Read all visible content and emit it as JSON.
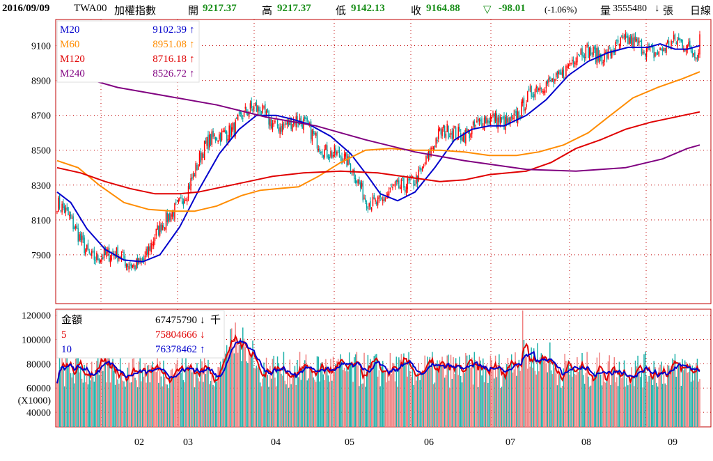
{
  "header": {
    "date": "2016/09/09",
    "ticker": "TWA00",
    "name": "加權指數",
    "open_label": "開",
    "open": "9217.37",
    "high_label": "高",
    "high": "9217.37",
    "low_label": "低",
    "low": "9142.13",
    "close_label": "收",
    "close": "9164.88",
    "change_symbol": "▽",
    "change": "-98.01",
    "change_pct": "(-1.06%)",
    "volume_label": "量",
    "volume": "3555480",
    "volume_arrow": "↓",
    "volume_unit": "張",
    "period": "日線"
  },
  "colors": {
    "up": "#ff0000",
    "down": "#00a0a0",
    "ma20": "#0000cc",
    "ma60": "#ff8c00",
    "ma120": "#e00000",
    "ma240": "#800080",
    "frame": "#c00000",
    "grid": "#c00000",
    "vol_up": "#f08080",
    "vol_down": "#20b2aa"
  },
  "price_legend": [
    {
      "name": "M20",
      "value": "9102.39",
      "arrow": "↑",
      "color": "#0000cc"
    },
    {
      "name": "M60",
      "value": "8951.08",
      "arrow": "↑",
      "color": "#ff8c00"
    },
    {
      "name": "M120",
      "value": "8716.18",
      "arrow": "↑",
      "color": "#e00000"
    },
    {
      "name": "M240",
      "value": "8526.72",
      "arrow": "↑",
      "color": "#800080"
    }
  ],
  "volume_legend": [
    {
      "name": "金額",
      "value": "67475790",
      "arrow": "↓",
      "unit": "千",
      "color": "#000000"
    },
    {
      "name": "5",
      "value": "75804666",
      "arrow": "↓",
      "unit": "",
      "color": "#e00000"
    },
    {
      "name": "10",
      "value": "76378462",
      "arrow": "↑",
      "unit": "",
      "color": "#0000cc"
    }
  ],
  "volume_unit_label": "(X1000)",
  "chart_data": [
    {
      "type": "candlestick",
      "title": "",
      "y_ticks": [
        7900,
        8100,
        8300,
        8500,
        8700,
        8900,
        9100
      ],
      "ylim": [
        7620,
        9250
      ],
      "x_ticks": [
        "02",
        "03",
        "04",
        "05",
        "06",
        "07",
        "08",
        "09"
      ],
      "grid": true,
      "legend": "top-left",
      "series": [
        {
          "name": "M20",
          "points": [
            [
              1,
              8260
            ],
            [
              12,
              8200
            ],
            [
              25,
              8050
            ],
            [
              40,
              7930
            ],
            [
              55,
              7870
            ],
            [
              70,
              7860
            ],
            [
              84,
              7900
            ],
            [
              100,
              8060
            ],
            [
              116,
              8280
            ],
            [
              132,
              8480
            ],
            [
              148,
              8620
            ],
            [
              162,
              8700
            ],
            [
              178,
              8700
            ],
            [
              190,
              8680
            ],
            [
              204,
              8650
            ],
            [
              222,
              8580
            ],
            [
              238,
              8480
            ],
            [
              252,
              8350
            ],
            [
              262,
              8250
            ],
            [
              276,
              8210
            ],
            [
              290,
              8260
            ],
            [
              306,
              8400
            ],
            [
              322,
              8560
            ],
            [
              336,
              8620
            ],
            [
              350,
              8640
            ],
            [
              362,
              8640
            ],
            [
              380,
              8700
            ],
            [
              396,
              8790
            ],
            [
              414,
              8930
            ],
            [
              430,
              9010
            ],
            [
              446,
              9060
            ],
            [
              462,
              9090
            ],
            [
              478,
              9090
            ],
            [
              488,
              9110
            ],
            [
              500,
              9080
            ],
            [
              510,
              9080
            ],
            [
              520,
              9100
            ]
          ]
        },
        {
          "name": "M60",
          "points": [
            [
              1,
              8440
            ],
            [
              18,
              8400
            ],
            [
              35,
              8300
            ],
            [
              55,
              8200
            ],
            [
              75,
              8160
            ],
            [
              95,
              8150
            ],
            [
              112,
              8150
            ],
            [
              130,
              8180
            ],
            [
              150,
              8240
            ],
            [
              165,
              8270
            ],
            [
              180,
              8280
            ],
            [
              196,
              8290
            ],
            [
              212,
              8350
            ],
            [
              230,
              8430
            ],
            [
              250,
              8500
            ],
            [
              270,
              8510
            ],
            [
              290,
              8500
            ],
            [
              310,
              8500
            ],
            [
              330,
              8490
            ],
            [
              350,
              8470
            ],
            [
              372,
              8470
            ],
            [
              390,
              8490
            ],
            [
              410,
              8530
            ],
            [
              430,
              8600
            ],
            [
              446,
              8690
            ],
            [
              466,
              8800
            ],
            [
              486,
              8860
            ],
            [
              506,
              8910
            ],
            [
              520,
              8950
            ]
          ]
        },
        {
          "name": "M120",
          "points": [
            [
              1,
              8400
            ],
            [
              20,
              8370
            ],
            [
              40,
              8320
            ],
            [
              60,
              8280
            ],
            [
              80,
              8250
            ],
            [
              100,
              8250
            ],
            [
              115,
              8260
            ],
            [
              135,
              8290
            ],
            [
              155,
              8320
            ],
            [
              175,
              8350
            ],
            [
              200,
              8370
            ],
            [
              230,
              8380
            ],
            [
              260,
              8370
            ],
            [
              290,
              8340
            ],
            [
              310,
              8320
            ],
            [
              330,
              8330
            ],
            [
              350,
              8360
            ],
            [
              365,
              8370
            ],
            [
              380,
              8380
            ],
            [
              400,
              8430
            ],
            [
              420,
              8510
            ],
            [
              440,
              8560
            ],
            [
              460,
              8620
            ],
            [
              480,
              8660
            ],
            [
              500,
              8690
            ],
            [
              520,
              8720
            ]
          ]
        },
        {
          "name": "M240",
          "points": [
            [
              15,
              8930
            ],
            [
              50,
              8860
            ],
            [
              90,
              8810
            ],
            [
              130,
              8760
            ],
            [
              170,
              8690
            ],
            [
              210,
              8640
            ],
            [
              250,
              8560
            ],
            [
              290,
              8490
            ],
            [
              330,
              8440
            ],
            [
              360,
              8410
            ],
            [
              380,
              8390
            ],
            [
              420,
              8380
            ],
            [
              460,
              8400
            ],
            [
              490,
              8450
            ],
            [
              510,
              8510
            ],
            [
              520,
              8530
            ]
          ]
        }
      ]
    },
    {
      "type": "bar",
      "title": "",
      "y_ticks": [
        40000,
        60000,
        80000,
        100000,
        120000
      ],
      "ylim": [
        28000,
        125000
      ],
      "unit": "(X1000)",
      "x_ticks": [
        "02",
        "03",
        "04",
        "05",
        "06",
        "07",
        "08",
        "09"
      ],
      "grid": true,
      "legend": "top-left",
      "series": [
        {
          "name": "5",
          "values": "five-day moving average of trading amount"
        },
        {
          "name": "10",
          "values": "ten-day moving average of trading amount"
        }
      ]
    }
  ]
}
